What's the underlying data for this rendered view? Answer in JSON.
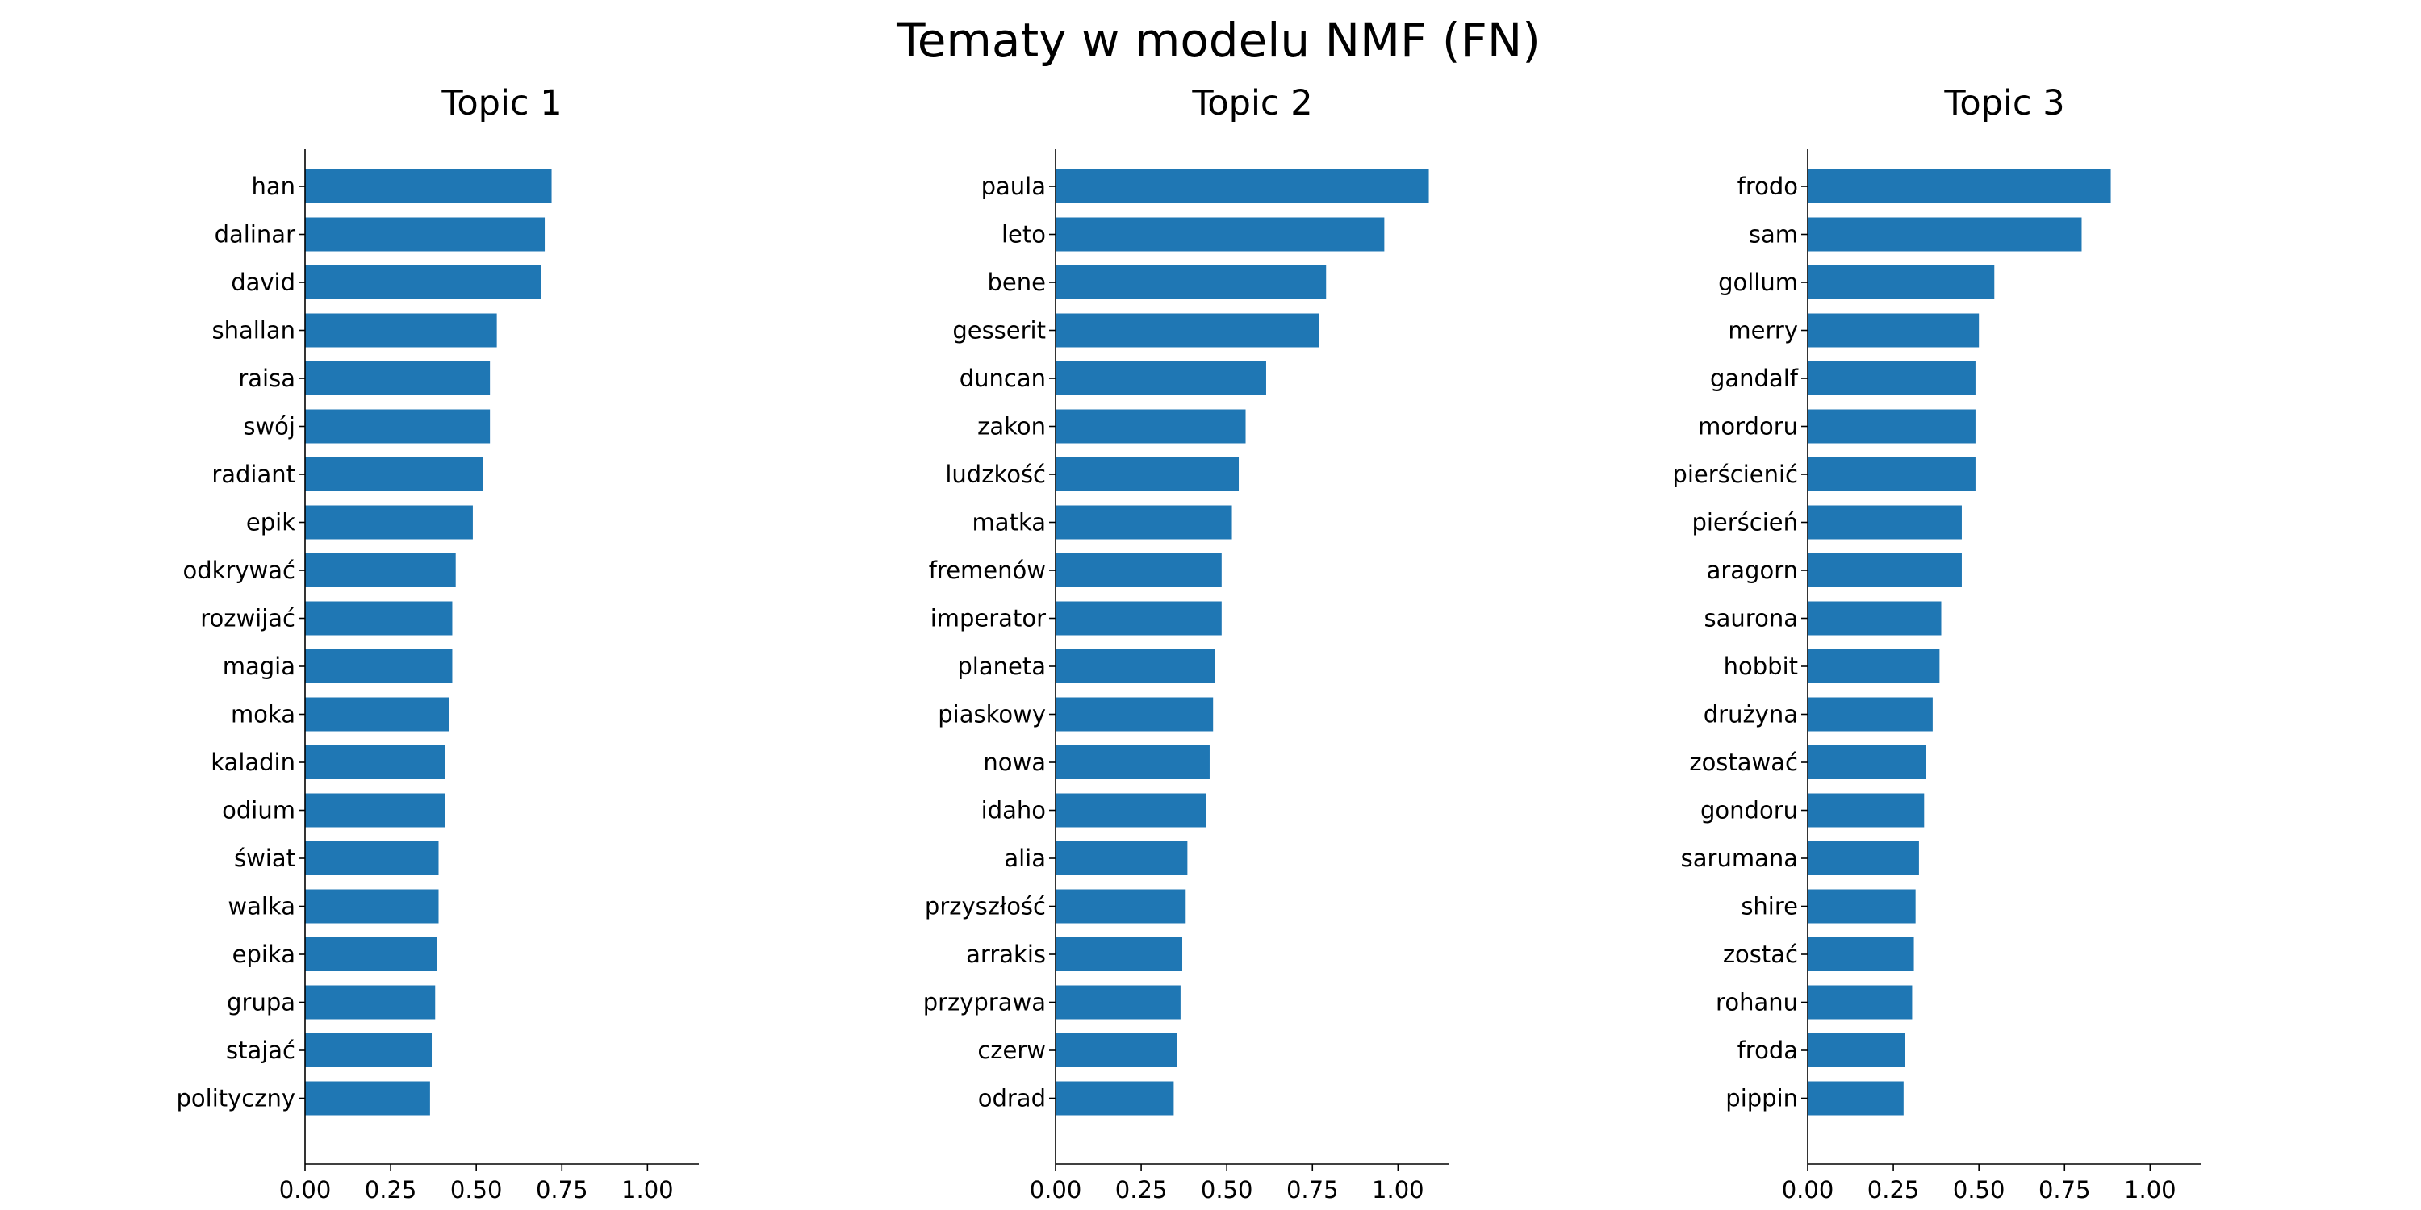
{
  "chart_data": {
    "type": "bar",
    "orientation": "horizontal",
    "title": "Tematy w modelu NMF (FN)",
    "color": "#1f77b4",
    "xlim": [
      0,
      1.15
    ],
    "xticks": [
      "0.00",
      "0.25",
      "0.50",
      "0.75",
      "1.00"
    ],
    "xtick_values": [
      0,
      0.25,
      0.5,
      0.75,
      1.0
    ],
    "grid": false,
    "panels": [
      {
        "title": "Topic 1",
        "categories": [
          "han",
          "dalinar",
          "david",
          "shallan",
          "raisa",
          "swój",
          "radiant",
          "epik",
          "odkrywać",
          "rozwijać",
          "magia",
          "moka",
          "kaladin",
          "odium",
          "świat",
          "walka",
          "epika",
          "grupa",
          "stajać",
          "polityczny"
        ],
        "values": [
          0.72,
          0.7,
          0.69,
          0.56,
          0.54,
          0.54,
          0.52,
          0.49,
          0.44,
          0.43,
          0.43,
          0.42,
          0.41,
          0.41,
          0.39,
          0.39,
          0.385,
          0.38,
          0.37,
          0.365
        ]
      },
      {
        "title": "Topic 2",
        "categories": [
          "paula",
          "leto",
          "bene",
          "gesserit",
          "duncan",
          "zakon",
          "ludzkość",
          "matka",
          "fremenów",
          "imperator",
          "planeta",
          "piaskowy",
          "nowa",
          "idaho",
          "alia",
          "przyszłość",
          "arrakis",
          "przyprawa",
          "czerw",
          "odrad"
        ],
        "values": [
          1.09,
          0.96,
          0.79,
          0.77,
          0.615,
          0.555,
          0.535,
          0.515,
          0.485,
          0.485,
          0.465,
          0.46,
          0.45,
          0.44,
          0.385,
          0.38,
          0.37,
          0.365,
          0.355,
          0.345
        ]
      },
      {
        "title": "Topic 3",
        "categories": [
          "frodo",
          "sam",
          "gollum",
          "merry",
          "gandalf",
          "mordoru",
          "pierścienić",
          "pierścień",
          "aragorn",
          "saurona",
          "hobbit",
          "drużyna",
          "zostawać",
          "gondoru",
          "sarumana",
          "shire",
          "zostać",
          "rohanu",
          "froda",
          "pippin"
        ],
        "values": [
          0.885,
          0.8,
          0.545,
          0.5,
          0.49,
          0.49,
          0.49,
          0.45,
          0.45,
          0.39,
          0.385,
          0.365,
          0.345,
          0.34,
          0.325,
          0.315,
          0.31,
          0.305,
          0.285,
          0.28
        ]
      }
    ]
  }
}
